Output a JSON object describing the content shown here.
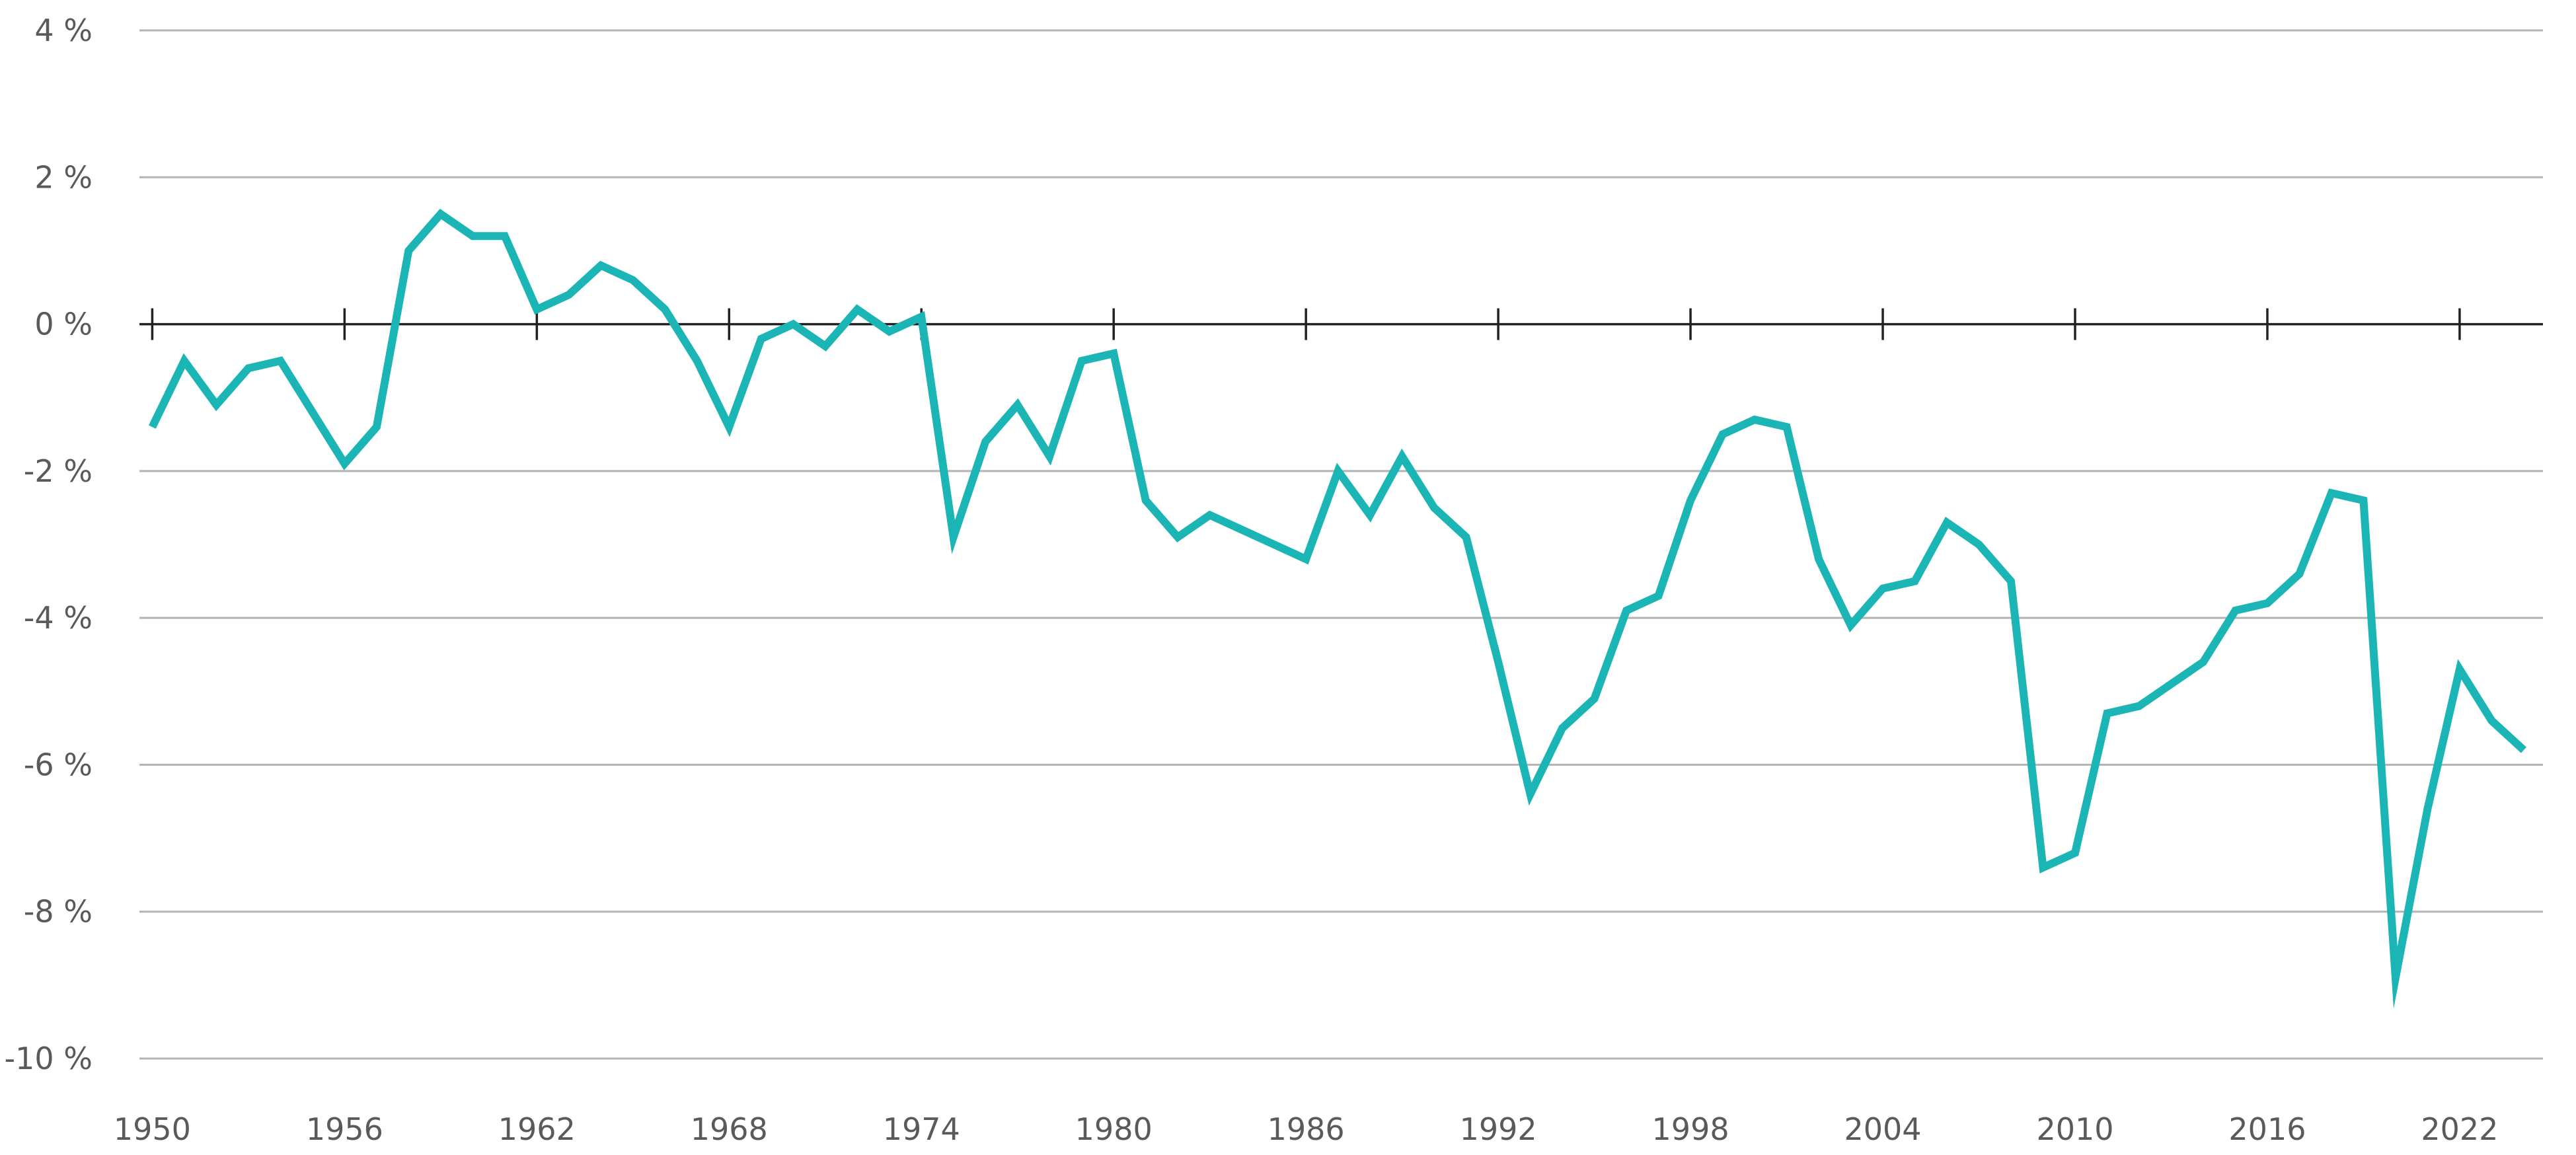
{
  "chart_data": {
    "type": "line",
    "title": "",
    "xlabel": "",
    "ylabel": "",
    "xlim": [
      1949.6,
      2024.6
    ],
    "ylim": [
      -10,
      4
    ],
    "y_ticks": [
      4,
      2,
      0,
      -2,
      -4,
      -6,
      -8,
      -10
    ],
    "y_tick_labels": [
      "4 %",
      "2 %",
      "0 %",
      "-2 %",
      "-4 %",
      "-6 %",
      "-8 %",
      "-10 %"
    ],
    "x_ticks": [
      1950,
      1956,
      1962,
      1968,
      1974,
      1980,
      1986,
      1992,
      1998,
      2004,
      2010,
      2016,
      2022
    ],
    "x_tick_labels": [
      "1950",
      "1956",
      "1962",
      "1968",
      "1974",
      "1980",
      "1986",
      "1992",
      "1998",
      "2004",
      "2010",
      "2016",
      "2022"
    ],
    "grid": true,
    "legend": "none",
    "color": "#1cb5b5",
    "series": [
      {
        "x": [
          1950,
          1951,
          1952,
          1953,
          1954,
          1956,
          1957,
          1958,
          1959,
          1960,
          1961,
          1962,
          1963,
          1964,
          1965,
          1966,
          1967,
          1968,
          1969,
          1970,
          1971,
          1972,
          1973,
          1974,
          1975,
          1976,
          1977,
          1978,
          1979,
          1980,
          1981,
          1982,
          1983,
          1986,
          1987,
          1988,
          1989,
          1990,
          1991,
          1992,
          1993,
          1994,
          1995,
          1996,
          1997,
          1998,
          1999,
          2000,
          2001,
          2002,
          2003,
          2004,
          2005,
          2006,
          2007,
          2008,
          2009,
          2010,
          2011,
          2012,
          2014,
          2015,
          2016,
          2017,
          2018,
          2019,
          2020,
          2021,
          2022,
          2023,
          2024
        ],
        "values": [
          -1.4,
          -0.5,
          -1.1,
          -0.6,
          -0.5,
          -1.9,
          -1.4,
          1.0,
          1.5,
          1.2,
          1.2,
          0.2,
          0.4,
          0.8,
          0.6,
          0.2,
          -0.5,
          -1.4,
          -0.2,
          0.0,
          -0.3,
          0.2,
          -0.1,
          0.1,
          -2.9,
          -1.6,
          -1.1,
          -1.8,
          -0.5,
          -0.4,
          -2.4,
          -2.9,
          -2.6,
          -3.2,
          -2.0,
          -2.6,
          -1.8,
          -2.5,
          -2.9,
          -4.6,
          -6.4,
          -5.5,
          -5.1,
          -3.9,
          -3.7,
          -2.4,
          -1.5,
          -1.3,
          -1.4,
          -3.2,
          -4.1,
          -3.6,
          -3.5,
          -2.7,
          -3.0,
          -3.5,
          -7.4,
          -7.2,
          -5.3,
          -5.2,
          -4.6,
          -3.9,
          -3.8,
          -3.4,
          -2.3,
          -2.4,
          -8.9,
          -6.6,
          -4.7,
          -5.4,
          -5.8
        ]
      }
    ]
  }
}
